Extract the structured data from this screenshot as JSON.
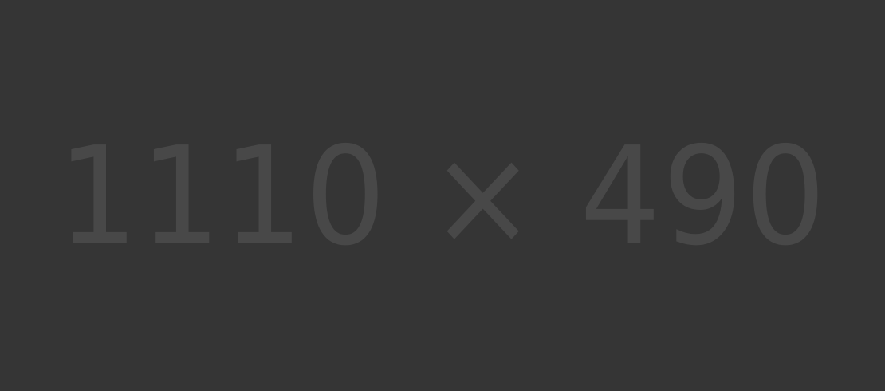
{
  "placeholder": {
    "label": "1110 × 490",
    "background_color": "#353535",
    "text_color": "#484848"
  }
}
